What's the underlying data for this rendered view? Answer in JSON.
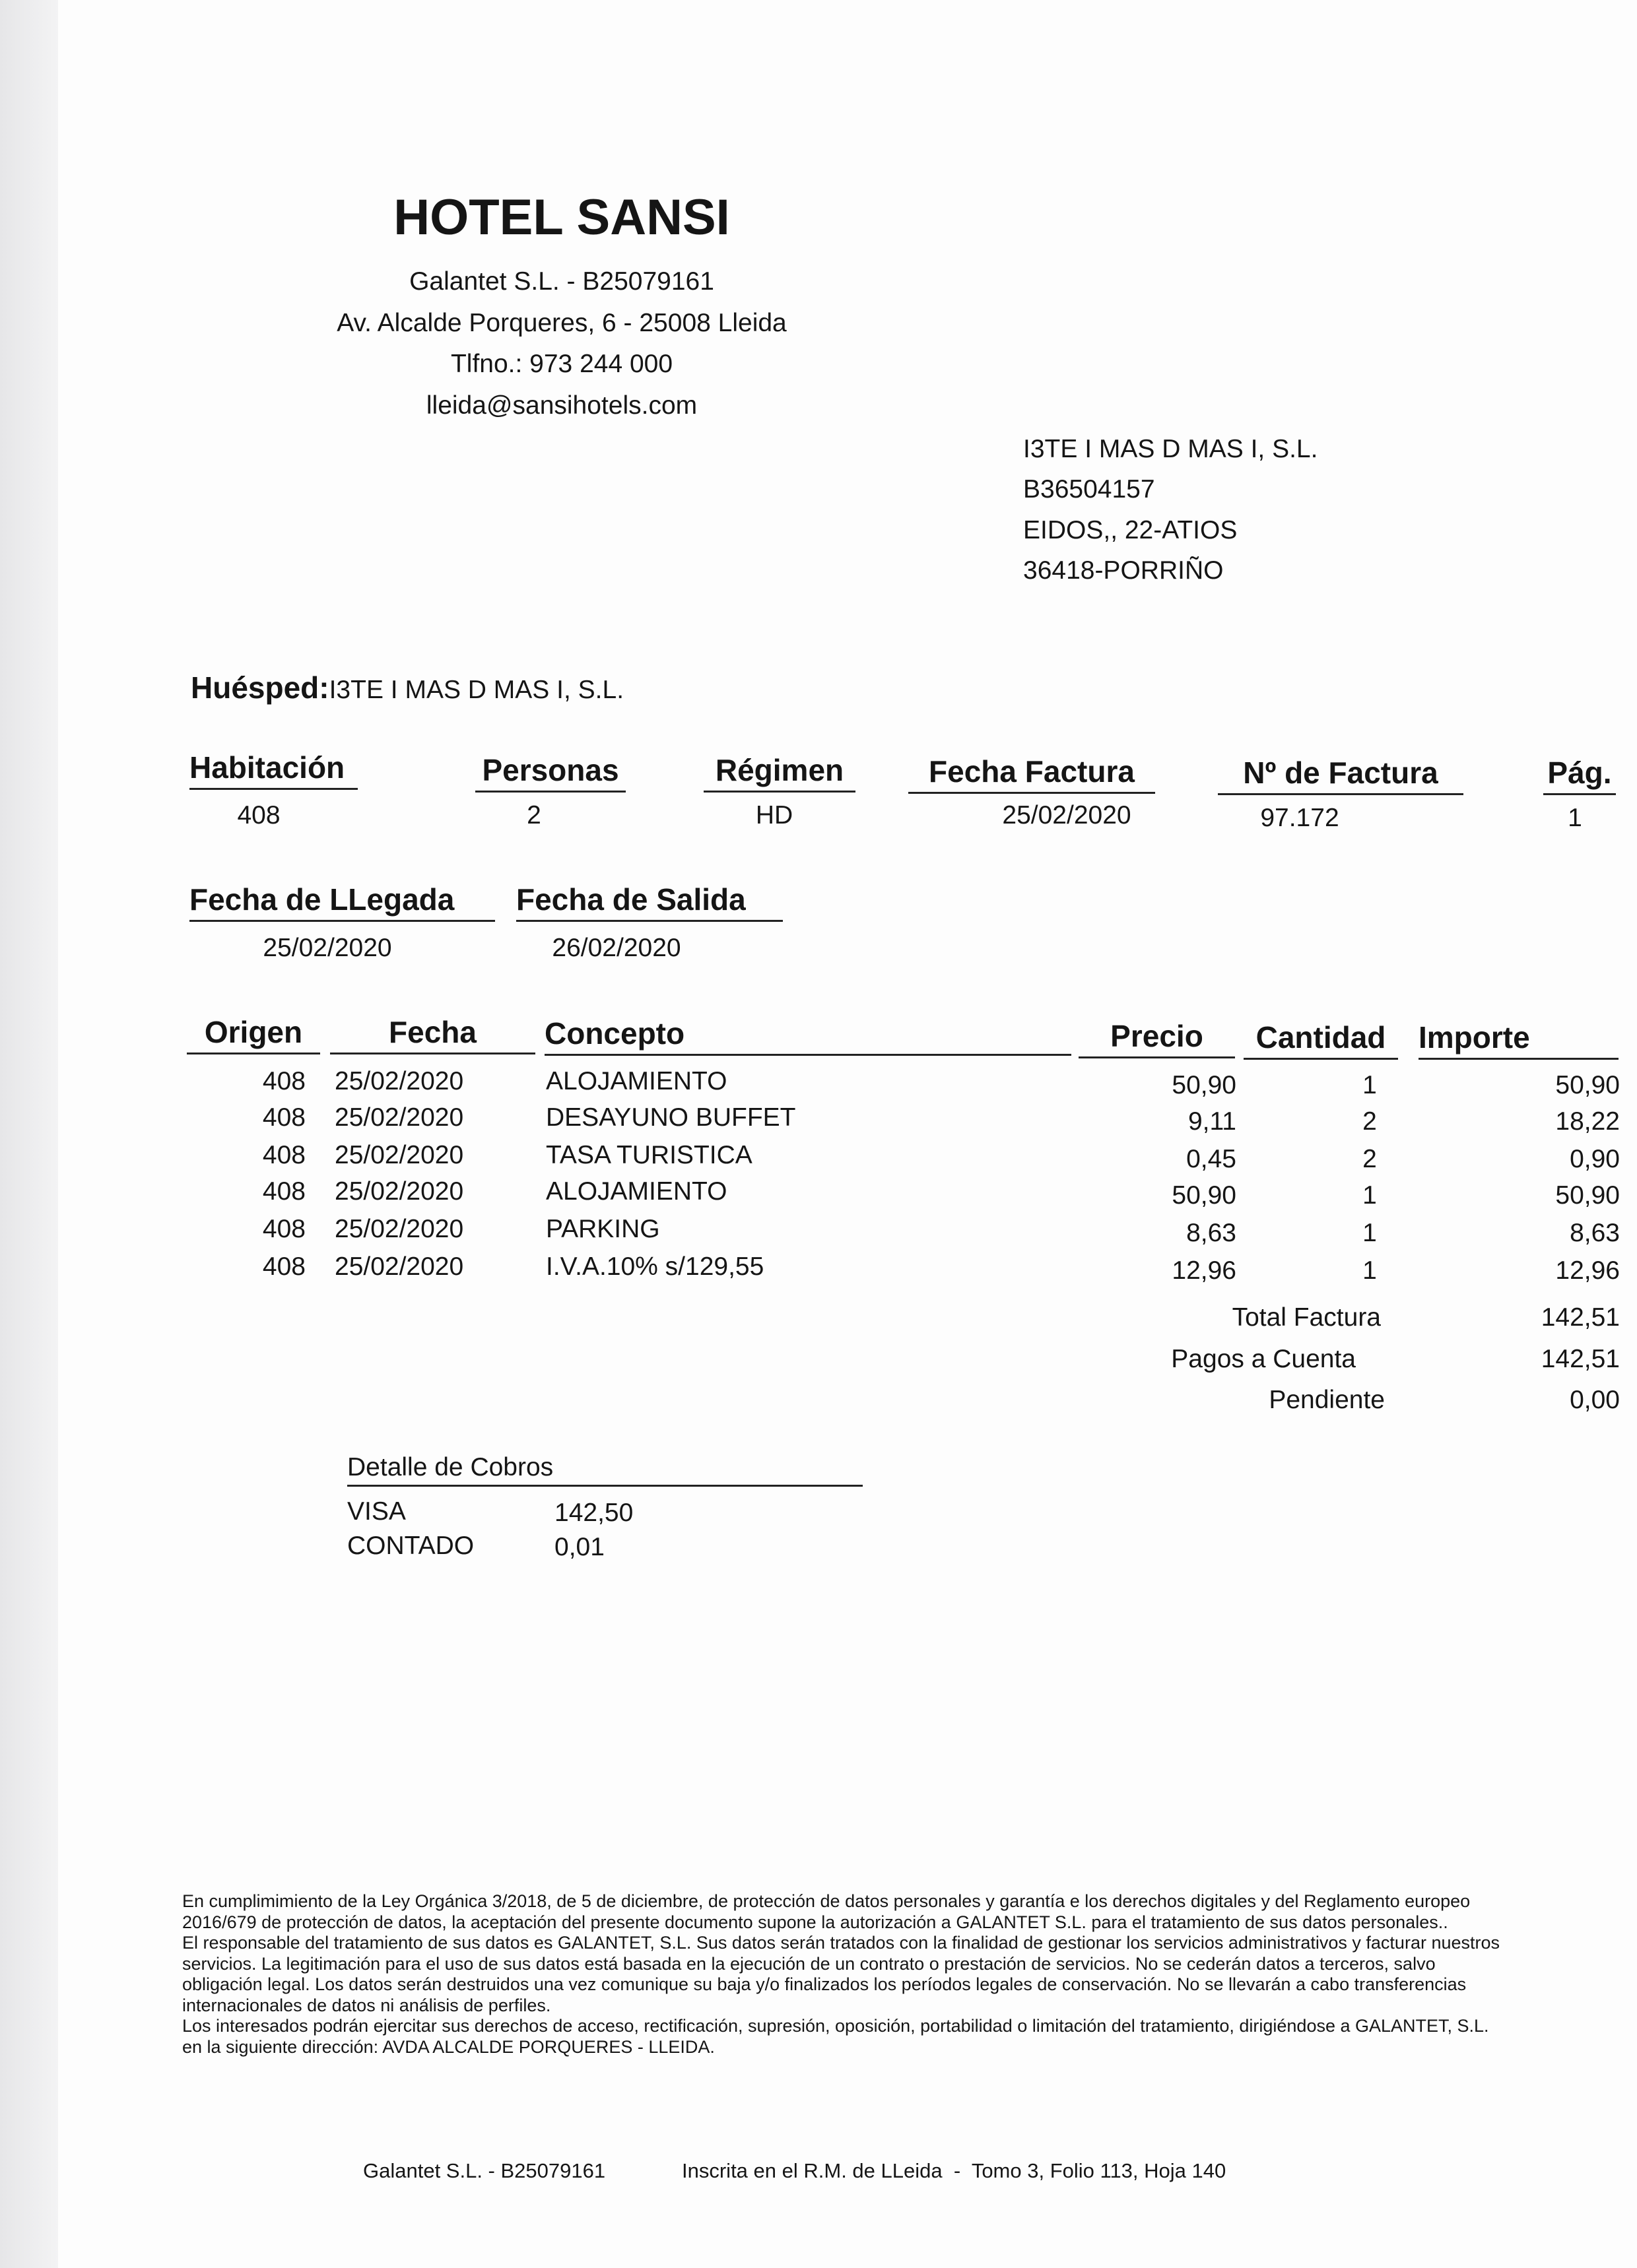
{
  "hotel": {
    "name": "HOTEL SANSI",
    "company": "Galantet S.L. - B25079161",
    "address": "Av. Alcalde Porqueres, 6 - 25008 Lleida",
    "phone": "Tlfno.: 973 244 000",
    "email": "lleida@sansihotels.com"
  },
  "client": {
    "name": "I3TE I MAS D MAS I, S.L.",
    "tax_id": "B36504157",
    "street": "EIDOS,, 22-ATIOS",
    "city": "36418-PORRIÑO"
  },
  "guest": {
    "label": "Huésped:",
    "value": "I3TE I MAS D MAS I, S.L."
  },
  "info": {
    "habitacion": {
      "label": "Habitación",
      "value": "408"
    },
    "personas": {
      "label": "Personas",
      "value": "2"
    },
    "regimen": {
      "label": "Régimen",
      "value": "HD"
    },
    "fecha_factura": {
      "label": "Fecha Factura",
      "value": "25/02/2020"
    },
    "num_factura": {
      "label": "Nº de Factura",
      "value": "97.172"
    },
    "pag": {
      "label": "Pág.",
      "value": "1"
    },
    "llegada": {
      "label": "Fecha de LLegada",
      "value": "25/02/2020"
    },
    "salida": {
      "label": "Fecha de Salida",
      "value": "26/02/2020"
    }
  },
  "table": {
    "headers": [
      "Origen",
      "Fecha",
      "Concepto",
      "Precio",
      "Cantidad",
      "Importe"
    ],
    "rows": [
      [
        "408",
        "25/02/2020",
        "ALOJAMIENTO",
        "50,90",
        "1",
        "50,90"
      ],
      [
        "408",
        "25/02/2020",
        "DESAYUNO BUFFET",
        "9,11",
        "2",
        "18,22"
      ],
      [
        "408",
        "25/02/2020",
        "TASA TURISTICA",
        "0,45",
        "2",
        "0,90"
      ],
      [
        "408",
        "25/02/2020",
        "ALOJAMIENTO",
        "50,90",
        "1",
        "50,90"
      ],
      [
        "408",
        "25/02/2020",
        "PARKING",
        "8,63",
        "1",
        "8,63"
      ],
      [
        "408",
        "25/02/2020",
        "I.V.A.10% s/129,55",
        "12,96",
        "1",
        "12,96"
      ]
    ]
  },
  "totals": [
    {
      "label": "Total Factura",
      "value": "142,51"
    },
    {
      "label": "Pagos a Cuenta",
      "value": "142,51"
    },
    {
      "label": "Pendiente",
      "value": "0,00"
    }
  ],
  "cobros": {
    "title": "Detalle de Cobros",
    "items": [
      {
        "method": "VISA",
        "amount": "142,50"
      },
      {
        "method": "CONTADO",
        "amount": "0,01"
      }
    ]
  },
  "legal": "En cumplimimiento de la Ley Orgánica 3/2018, de 5 de diciembre, de protección de datos personales y garantía e los derechos digitales y del Reglamento europeo\n2016/679  de protección de datos, la aceptación del presente documento supone la autorización a GALANTET S.L. para el tratamiento de sus datos personales..\nEl responsable del tratamiento de sus datos es GALANTET, S.L. Sus datos serán tratados con la finalidad de gestionar los servicios administrativos y facturar nuestros\nservicios. La legitimación para el uso de sus datos está basada en la ejecución de un contrato o prestación de servicios. No se cederán datos a terceros, salvo\nobligación legal. Los datos serán destruidos una vez comunique su baja y/o finalizados los períodos legales de conservación. No se llevarán a cabo transferencias\ninternacionales de datos ni análisis de perfiles.\nLos interesados podrán ejercitar sus derechos de acceso, rectificación, supresión, oposición, portabilidad o limitación del tratamiento, dirigiéndose a  GALANTET, S.L.\nen la siguiente dirección: AVDA ALCALDE PORQUERES - LLEIDA.",
  "footer": {
    "company": "Galantet S.L. - B25079161",
    "registry": "Inscrita en el R.M. de LLeida  -  Tomo 3, Folio 113, Hoja 140"
  }
}
